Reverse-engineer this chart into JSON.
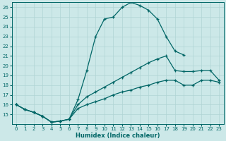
{
  "xlabel": "Humidex (Indice chaleur)",
  "bg_color": "#cce8e8",
  "line_color": "#006666",
  "grid_color": "#b0d4d4",
  "ylim": [
    14,
    26.5
  ],
  "xlim": [
    -0.5,
    23.5
  ],
  "yticks": [
    15,
    16,
    17,
    18,
    19,
    20,
    21,
    22,
    23,
    24,
    25,
    26
  ],
  "xticks": [
    0,
    1,
    2,
    3,
    4,
    5,
    6,
    7,
    8,
    9,
    10,
    11,
    12,
    13,
    14,
    15,
    16,
    17,
    18,
    19,
    20,
    21,
    22,
    23
  ],
  "line1_x": [
    0,
    1,
    2,
    3,
    4,
    5,
    6,
    7,
    8,
    9,
    10,
    11,
    12,
    13,
    14,
    15,
    16,
    17,
    18,
    19,
    20,
    21,
    22,
    23
  ],
  "line1_y": [
    16.0,
    15.5,
    15.2,
    14.8,
    14.2,
    14.3,
    14.5,
    16.5,
    19.5,
    23.0,
    24.8,
    25.0,
    26.0,
    26.5,
    26.2,
    25.7,
    24.8,
    23.0,
    21.5,
    21.1,
    null,
    null,
    null,
    null
  ],
  "line2_x": [
    0,
    1,
    2,
    3,
    4,
    5,
    6,
    7,
    8,
    9,
    10,
    11,
    12,
    13,
    14,
    15,
    16,
    17,
    18,
    19,
    20,
    21,
    22,
    23
  ],
  "line2_y": [
    16.0,
    15.5,
    15.2,
    14.8,
    14.2,
    14.3,
    14.5,
    16.0,
    16.8,
    17.3,
    17.8,
    18.3,
    18.8,
    19.3,
    19.8,
    20.3,
    20.7,
    21.0,
    19.5,
    19.4,
    19.4,
    19.5,
    19.5,
    18.5
  ],
  "line3_x": [
    0,
    1,
    2,
    3,
    4,
    5,
    6,
    7,
    8,
    9,
    10,
    11,
    12,
    13,
    14,
    15,
    16,
    17,
    18,
    19,
    20,
    21,
    22,
    23
  ],
  "line3_y": [
    16.0,
    15.5,
    15.2,
    14.8,
    14.2,
    14.3,
    14.5,
    15.6,
    16.0,
    16.3,
    16.6,
    17.0,
    17.3,
    17.5,
    17.8,
    18.0,
    18.3,
    18.5,
    18.5,
    18.0,
    18.0,
    18.5,
    18.5,
    18.3
  ]
}
